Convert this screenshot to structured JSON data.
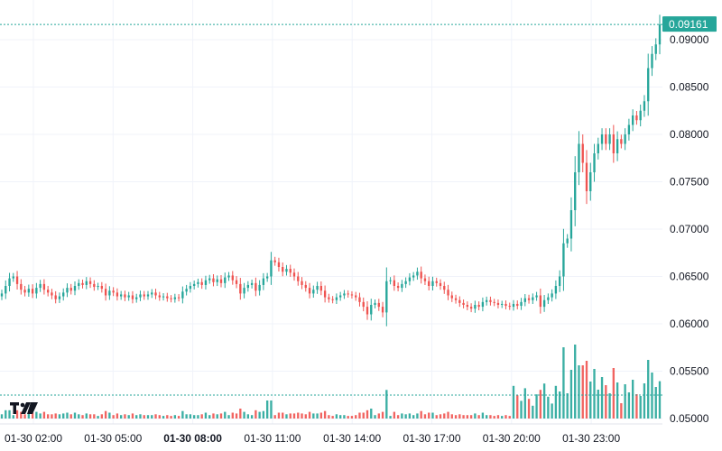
{
  "chart_data": {
    "type": "candlestick",
    "title": "",
    "xlabel": "",
    "ylabel": "",
    "ylim": [
      0.0495,
      0.0925
    ],
    "y_ticks": [
      "0.05000",
      "0.05500",
      "0.06000",
      "0.06500",
      "0.07000",
      "0.07500",
      "0.08000",
      "0.08500",
      "0.09000"
    ],
    "x_ticks": [
      {
        "label": "01-30 02:00",
        "bold": false
      },
      {
        "label": "01-30 05:00",
        "bold": false
      },
      {
        "label": "01-30 08:00",
        "bold": true
      },
      {
        "label": "01-30 11:00",
        "bold": false
      },
      {
        "label": "01-30 14:00",
        "bold": false
      },
      {
        "label": "01-30 17:00",
        "bold": false
      },
      {
        "label": "01-30 20:00",
        "bold": false
      },
      {
        "label": "01-30 23:00",
        "bold": false
      }
    ],
    "last_price": "0.09161",
    "last_price_value": 0.09161,
    "grid": true,
    "colors": {
      "up": "#26a69a",
      "down": "#ef5350",
      "grid": "#f0f3fa",
      "price_label": "#26a69a"
    },
    "logo": "tv-logo",
    "close_series": [
      0.0632,
      0.064,
      0.0648,
      0.065,
      0.0642,
      0.0636,
      0.0633,
      0.0637,
      0.0632,
      0.0638,
      0.0642,
      0.0636,
      0.0633,
      0.063,
      0.0626,
      0.0629,
      0.0633,
      0.0638,
      0.0635,
      0.064,
      0.0643,
      0.0641,
      0.0645,
      0.0642,
      0.0639,
      0.064,
      0.0637,
      0.063,
      0.0635,
      0.0633,
      0.0629,
      0.0631,
      0.0628,
      0.063,
      0.0626,
      0.0628,
      0.0631,
      0.0629,
      0.0631,
      0.0633,
      0.063,
      0.0628,
      0.0629,
      0.0627,
      0.0626,
      0.0628,
      0.0627,
      0.0634,
      0.0637,
      0.064,
      0.0642,
      0.0644,
      0.0641,
      0.0646,
      0.0648,
      0.0644,
      0.0647,
      0.0643,
      0.0649,
      0.0651,
      0.0646,
      0.0642,
      0.0632,
      0.0638,
      0.0641,
      0.0643,
      0.0635,
      0.0641,
      0.0648,
      0.065,
      0.0667,
      0.0665,
      0.066,
      0.0655,
      0.0658,
      0.0654,
      0.065,
      0.0645,
      0.0641,
      0.0638,
      0.0632,
      0.0636,
      0.064,
      0.0635,
      0.0628,
      0.0626,
      0.0625,
      0.0628,
      0.063,
      0.0632,
      0.0631,
      0.063,
      0.0628,
      0.0623,
      0.0618,
      0.061,
      0.062,
      0.0622,
      0.0618,
      0.0612,
      0.0645,
      0.0646,
      0.064,
      0.0638,
      0.0642,
      0.0645,
      0.0649,
      0.0651,
      0.0655,
      0.0648,
      0.0645,
      0.064,
      0.0645,
      0.0643,
      0.064,
      0.0636,
      0.063,
      0.0627,
      0.0625,
      0.0622,
      0.062,
      0.0618,
      0.0616,
      0.062,
      0.0618,
      0.0623,
      0.0625,
      0.0623,
      0.0622,
      0.062,
      0.0621,
      0.0619,
      0.0618,
      0.0621,
      0.0619,
      0.0623,
      0.0627,
      0.0625,
      0.0628,
      0.063,
      0.0618,
      0.0625,
      0.0628,
      0.0632,
      0.064,
      0.065,
      0.0685,
      0.069,
      0.072,
      0.076,
      0.079,
      0.077,
      0.074,
      0.076,
      0.078,
      0.079,
      0.08,
      0.079,
      0.08,
      0.078,
      0.0795,
      0.079,
      0.08,
      0.081,
      0.082,
      0.0815,
      0.0825,
      0.0835,
      0.087,
      0.0885,
      0.0895,
      0.0916
    ]
  }
}
